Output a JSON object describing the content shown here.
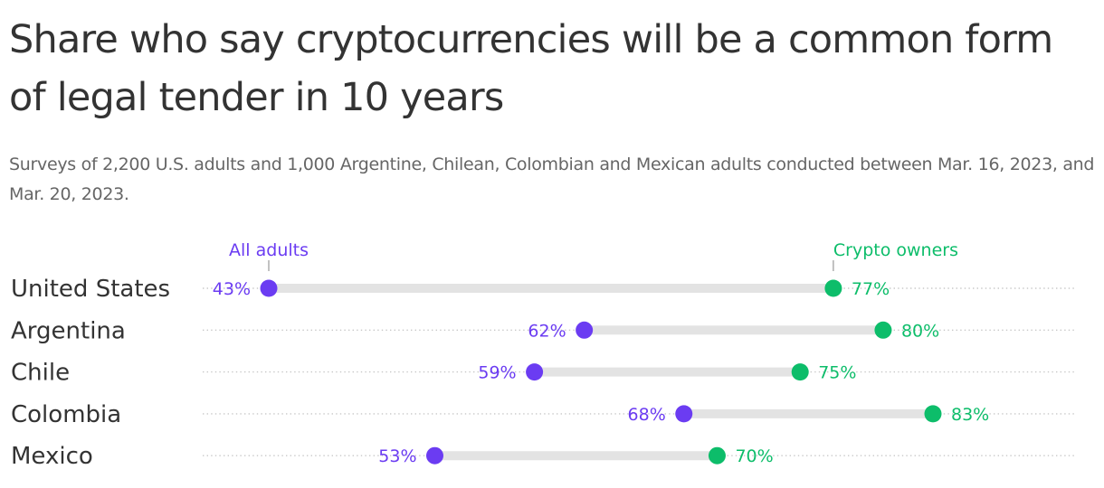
{
  "title": "Share who say cryptocurrencies will be a common form of legal tender in 10 years",
  "subtitle": "Surveys of 2,200 U.S. adults and 1,000 Argentine, Chilean, Colombian and Mexican adults conducted between Mar. 16, 2023, and Mar. 20, 2023.",
  "colors": {
    "all_adults": "#6b3cf2",
    "crypto_owners": "#0dbd6a",
    "bar": "#e3e3e3",
    "dots": "#c8c8c8"
  },
  "chart_data": {
    "type": "dumbbell",
    "unit": "%",
    "xlim": [
      30,
      84
    ],
    "categories": [
      "United States",
      "Argentina",
      "Chile",
      "Colombia",
      "Mexico"
    ],
    "series": [
      {
        "name": "All adults",
        "values": [
          43,
          62,
          59,
          68,
          53
        ]
      },
      {
        "name": "Crypto owners",
        "values": [
          77,
          80,
          75,
          83,
          70
        ]
      }
    ],
    "legend_placement": "above first row",
    "grid": false
  }
}
